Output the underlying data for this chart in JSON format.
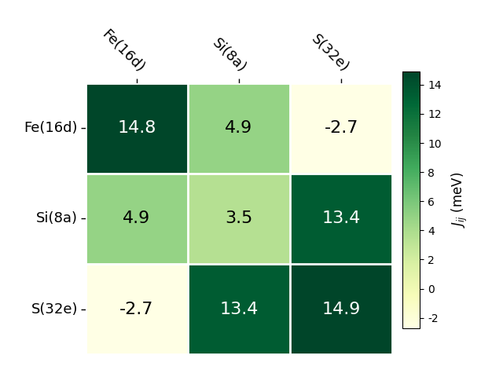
{
  "labels": [
    "Fe(16d)",
    "Si(8a)",
    "S(32e)"
  ],
  "matrix": [
    [
      14.8,
      4.9,
      -2.7
    ],
    [
      4.9,
      3.5,
      13.4
    ],
    [
      -2.7,
      13.4,
      14.9
    ]
  ],
  "vmin": -2.7,
  "vmax": 14.9,
  "colormap": "YlGn",
  "colorbar_label": "$J_{ij}$ (meV)",
  "colorbar_ticks": [
    -2,
    0,
    2,
    4,
    6,
    8,
    10,
    12,
    14
  ],
  "text_color_threshold": 7.0,
  "cell_text_fontsize": 16,
  "label_fontsize": 13,
  "background_color": "#ffffff"
}
